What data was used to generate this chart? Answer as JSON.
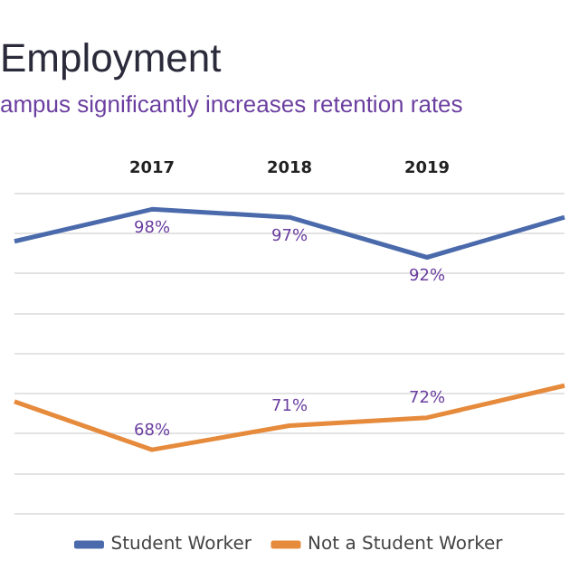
{
  "chart_data": {
    "type": "line",
    "title": "Employment",
    "subtitle": "ampus significantly increases retention rates",
    "categories": [
      null,
      "2017",
      "2018",
      "2019",
      null
    ],
    "series": [
      {
        "name": "Student Worker",
        "color": "#4a6aac",
        "values": [
          94,
          98,
          97,
          92,
          97
        ],
        "value_labels": [
          null,
          "98%",
          "97%",
          "92%",
          null
        ]
      },
      {
        "name": "Not a Student Worker",
        "color": "#e68a3c",
        "values": [
          74,
          68,
          71,
          72,
          76
        ],
        "value_labels": [
          null,
          "68%",
          "71%",
          "72%",
          null
        ]
      }
    ],
    "ylim": [
      60,
      100
    ],
    "yticks": [
      {
        "value": 60,
        "label": null
      },
      {
        "value": 65,
        "label": null
      },
      {
        "value": 70,
        "label": null
      },
      {
        "value": 75,
        "label": null
      },
      {
        "value": 80,
        "label": null
      },
      {
        "value": 85,
        "label": null
      },
      {
        "value": 90,
        "label": null
      },
      {
        "value": 95,
        "label": null
      },
      {
        "value": 100,
        "label": null
      }
    ],
    "grid": "y",
    "tick_labels": "x",
    "legend": "bottom",
    "marker": "none",
    "line_style": "solid"
  }
}
